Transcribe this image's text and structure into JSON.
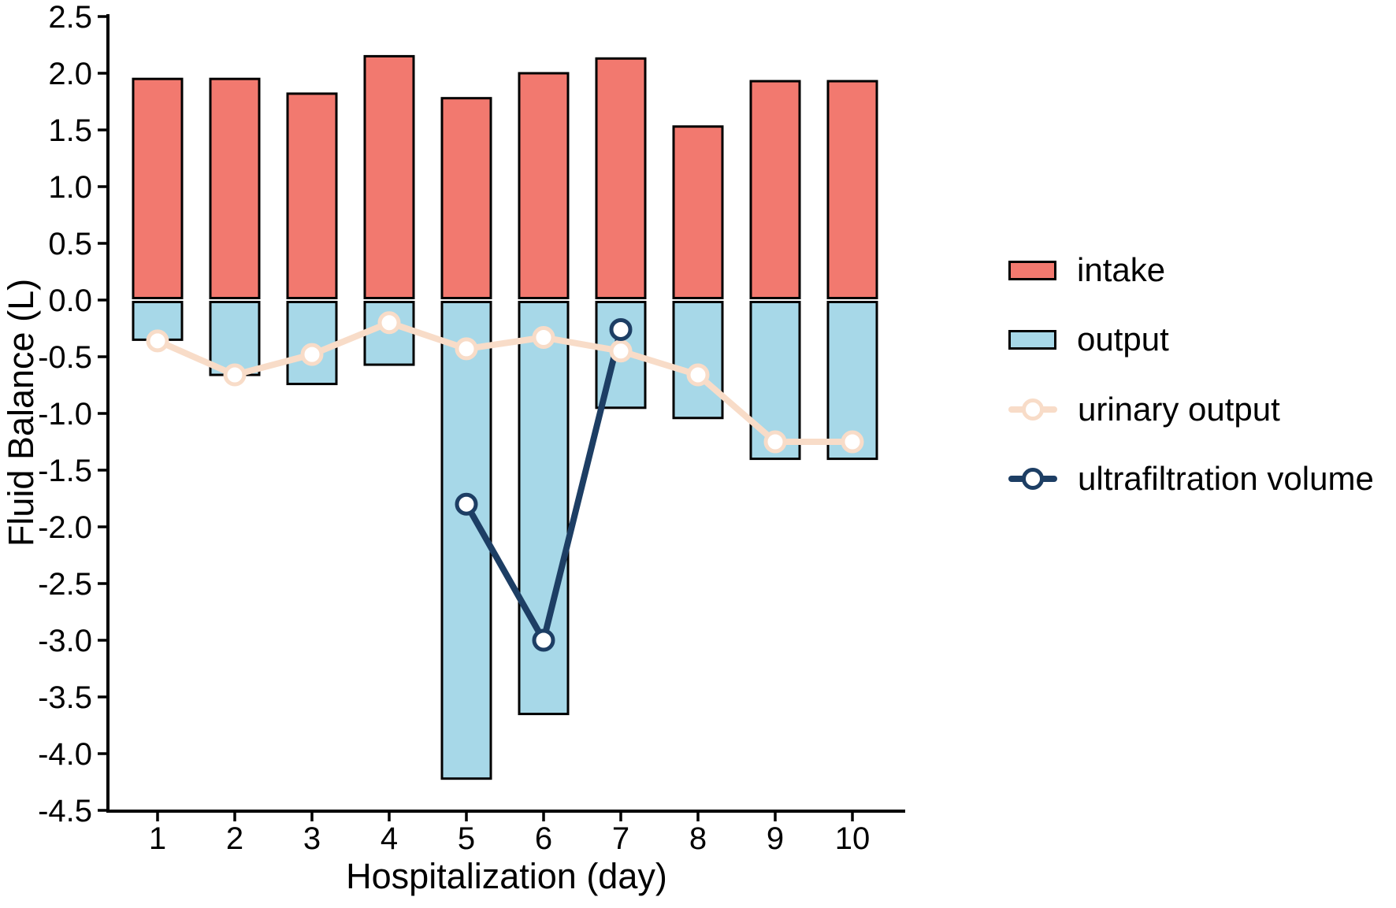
{
  "chart_data": {
    "type": "combo-bar-line",
    "title": "",
    "xlabel": "Hospitalization (day)",
    "ylabel": "Fluid Balance (L)",
    "categories": [
      1,
      2,
      3,
      4,
      5,
      6,
      7,
      8,
      9,
      10
    ],
    "ylim": [
      -4.5,
      2.5
    ],
    "ytick_step": 0.5,
    "grid": false,
    "legend_position": "right",
    "background": "#ffffff",
    "axis_color": "#000000",
    "series": [
      {
        "name": "intake",
        "type": "bar",
        "color": "#F2796F",
        "outline": "#000000",
        "values": [
          1.95,
          1.95,
          1.82,
          2.15,
          1.78,
          2.0,
          2.13,
          1.53,
          1.93,
          1.93
        ]
      },
      {
        "name": "output",
        "type": "bar",
        "color": "#A7D8E8",
        "outline": "#000000",
        "values": [
          -0.35,
          -0.66,
          -0.74,
          -0.57,
          -4.22,
          -3.65,
          -0.95,
          -1.04,
          -1.4,
          -1.4
        ]
      },
      {
        "name": "urinary output",
        "type": "line",
        "color": "#F8DCC8",
        "marker": "open-circle",
        "marker_fill": "#ffffff",
        "values": [
          -0.36,
          -0.66,
          -0.48,
          -0.2,
          -0.43,
          -0.33,
          -0.45,
          -0.66,
          -1.25,
          -1.25
        ]
      },
      {
        "name": "ultrafiltration volume",
        "type": "line",
        "color": "#1D3E64",
        "marker": "open-circle",
        "marker_fill": "#ffffff",
        "values": [
          null,
          null,
          null,
          null,
          -1.8,
          -3.0,
          -0.26,
          null,
          null,
          null
        ]
      }
    ]
  }
}
